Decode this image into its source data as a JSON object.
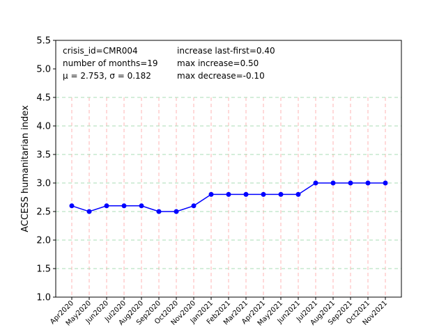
{
  "chart_data": {
    "type": "line",
    "title": "",
    "xlabel": "",
    "ylabel": "ACCESS humanitarian index",
    "ylim": [
      1.0,
      5.5
    ],
    "yticks": [
      "1.0",
      "1.5",
      "2.0",
      "2.5",
      "3.0",
      "3.5",
      "4.0",
      "4.5",
      "5.0",
      "5.5"
    ],
    "categories": [
      "Apr2020",
      "May2020",
      "Jun2020",
      "Jul2020",
      "Aug2020",
      "Sep2020",
      "Oct2020",
      "Nov2020",
      "Jan2021",
      "Feb2021",
      "Mar2021",
      "Apr2021",
      "May2021",
      "Jun2021",
      "Jul2021",
      "Aug2021",
      "Sep2021",
      "Oct2021",
      "Nov2021"
    ],
    "series": [
      {
        "values": [
          2.6,
          2.5,
          2.6,
          2.6,
          2.6,
          2.5,
          2.5,
          2.6,
          2.8,
          2.8,
          2.8,
          2.8,
          2.8,
          2.8,
          3.0,
          3.0,
          3.0,
          3.0,
          3.0
        ],
        "color": "#0000ff"
      }
    ],
    "vertical_grid": {
      "color": "#ffb3b3",
      "style": "dashed"
    },
    "horizontal_grid": {
      "color": "#a8dcb4",
      "style": "dashed",
      "values": [
        1.5,
        2.0,
        2.5,
        3.0,
        3.5,
        4.0,
        4.5
      ]
    },
    "annotations": {
      "left": [
        "crisis_id=CMR004",
        "number of months=19",
        "μ = 2.753,  σ = 0.182"
      ],
      "right": [
        "increase last-first=0.40",
        "max increase=0.50",
        "max decrease=-0.10"
      ]
    }
  }
}
